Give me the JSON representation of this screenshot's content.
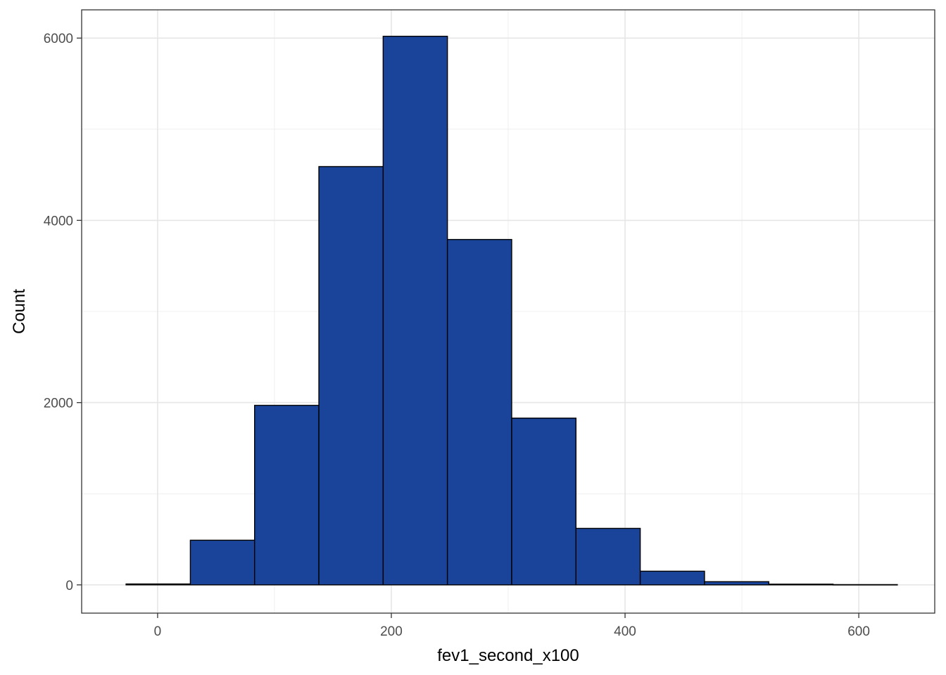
{
  "chart_data": {
    "type": "bar",
    "subtype": "histogram",
    "title": "",
    "xlabel": "fev1_second_x100",
    "ylabel": "Count",
    "xlim": [
      -65,
      665
    ],
    "ylim": [
      -310,
      6310
    ],
    "x_ticks": [
      0,
      200,
      400,
      600
    ],
    "y_ticks": [
      0,
      2000,
      4000,
      6000
    ],
    "x_minor_ticks": [
      100,
      300,
      500
    ],
    "y_minor_ticks": [
      1000,
      3000,
      5000
    ],
    "grid": true,
    "legend": "none",
    "fill_color": "#1A4499",
    "edge_color": "#000000",
    "bins": [
      {
        "x0": -27,
        "x1": 28,
        "count": 10
      },
      {
        "x0": 28,
        "x1": 83,
        "count": 490
      },
      {
        "x0": 83,
        "x1": 138,
        "count": 1970
      },
      {
        "x0": 138,
        "x1": 193,
        "count": 4590
      },
      {
        "x0": 193,
        "x1": 248,
        "count": 6020
      },
      {
        "x0": 248,
        "x1": 303,
        "count": 3790
      },
      {
        "x0": 303,
        "x1": 358,
        "count": 1830
      },
      {
        "x0": 358,
        "x1": 413,
        "count": 620
      },
      {
        "x0": 413,
        "x1": 468,
        "count": 150
      },
      {
        "x0": 468,
        "x1": 523,
        "count": 35
      },
      {
        "x0": 523,
        "x1": 578,
        "count": 8
      },
      {
        "x0": 578,
        "x1": 633,
        "count": 3
      }
    ]
  }
}
